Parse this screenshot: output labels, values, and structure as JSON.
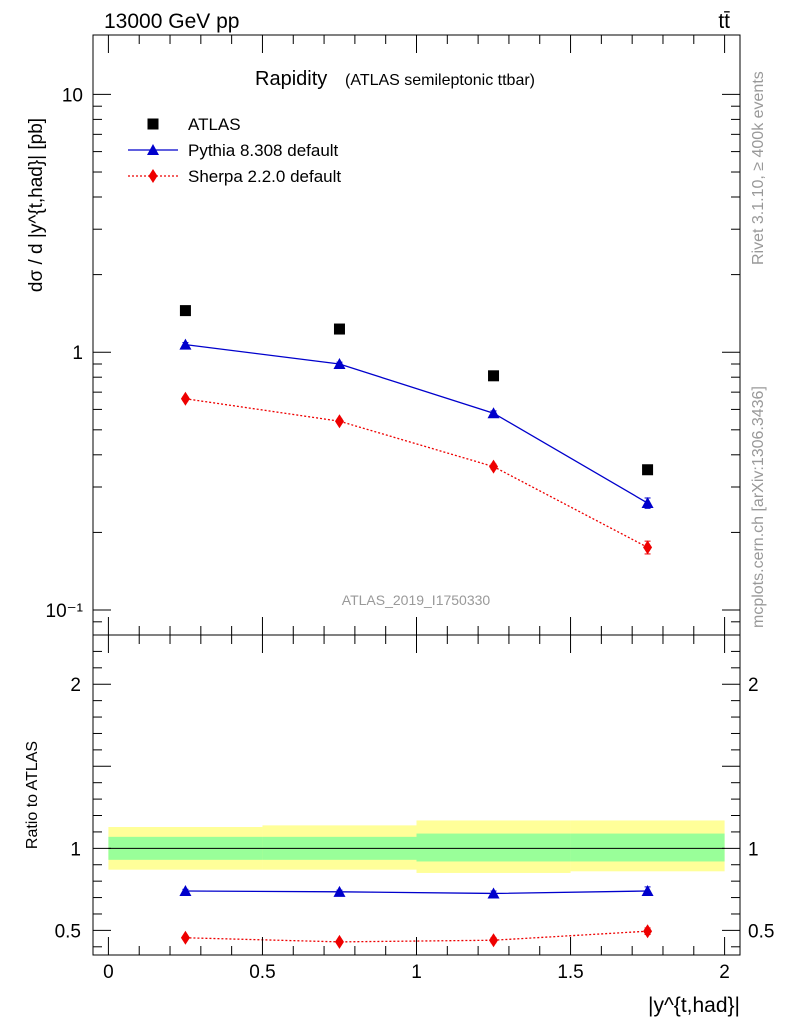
{
  "header": {
    "energy_label": "13000 GeV pp",
    "process_label": "tt̄"
  },
  "side_labels": {
    "rivet": "Rivet 3.1.10, ≥ 400k events",
    "mcplots": "mcplots.cern.ch [arXiv:1306.3436]"
  },
  "chart_data": [
    {
      "type": "scatter",
      "title": "Rapidity",
      "subtitle": "(ATLAS semileptonic ttbar)",
      "watermark": "ATLAS_2019_I1750330",
      "ylabel": "dσ / d |y^{t,had}| [pb]",
      "yscale": "log",
      "ylim": [
        0.08,
        17
      ],
      "yticks": [
        {
          "v": 0.1,
          "label": "10⁻¹"
        },
        {
          "v": 1,
          "label": "1"
        },
        {
          "v": 10,
          "label": "10"
        }
      ],
      "x": [
        0.25,
        0.75,
        1.25,
        1.75
      ],
      "xlim": [
        -0.05,
        2.05
      ],
      "legend_position": "top-left",
      "series": [
        {
          "name": "ATLAS",
          "marker": "square",
          "color": "#000000",
          "line": "none",
          "values": [
            1.45,
            1.23,
            0.81,
            0.35
          ],
          "errors": [
            0,
            0,
            0,
            0
          ]
        },
        {
          "name": "Pythia 8.308 default",
          "marker": "triangle",
          "color": "#0000cc",
          "line": "solid",
          "values": [
            1.07,
            0.9,
            0.58,
            0.26
          ],
          "errors": [
            0.02,
            0.015,
            0.012,
            0.012
          ]
        },
        {
          "name": "Sherpa 2.2.0 default",
          "marker": "diamond",
          "color": "#ee0000",
          "line": "dotted",
          "values": [
            0.66,
            0.54,
            0.36,
            0.175
          ],
          "errors": [
            0.012,
            0.01,
            0.008,
            0.01
          ]
        }
      ]
    },
    {
      "type": "scatter",
      "ylabel": "Ratio to ATLAS",
      "xlabel": "|y^{t,had}|",
      "ylim": [
        0.35,
        2.3
      ],
      "yticks": [
        {
          "v": 0.5,
          "label": "0.5"
        },
        {
          "v": 1,
          "label": "1"
        },
        {
          "v": 2,
          "label": "2"
        }
      ],
      "xticks": [
        {
          "v": 0,
          "label": "0"
        },
        {
          "v": 0.5,
          "label": "0.5"
        },
        {
          "v": 1,
          "label": "1"
        },
        {
          "v": 1.5,
          "label": "1.5"
        },
        {
          "v": 2,
          "label": "2"
        }
      ],
      "x": [
        0.25,
        0.75,
        1.25,
        1.75
      ],
      "xlim": [
        -0.05,
        2.05
      ],
      "uncertainty_bands": [
        {
          "x0": 0,
          "x1": 0.5,
          "stat": [
            0.93,
            1.07
          ],
          "total": [
            0.87,
            1.13
          ]
        },
        {
          "x0": 0.5,
          "x1": 1,
          "stat": [
            0.93,
            1.07
          ],
          "total": [
            0.87,
            1.14
          ]
        },
        {
          "x0": 1,
          "x1": 1.5,
          "stat": [
            0.92,
            1.09
          ],
          "total": [
            0.85,
            1.17
          ]
        },
        {
          "x0": 1.5,
          "x1": 2,
          "stat": [
            0.92,
            1.09
          ],
          "total": [
            0.86,
            1.17
          ]
        }
      ],
      "band_colors": {
        "stat": "#99ff99",
        "total": "#ffff99"
      },
      "series": [
        {
          "name": "Pythia 8.308 default",
          "marker": "triangle",
          "color": "#0000cc",
          "line": "solid",
          "values": [
            0.74,
            0.735,
            0.725,
            0.74
          ],
          "errors": [
            0.01,
            0.01,
            0.015,
            0.025
          ]
        },
        {
          "name": "Sherpa 2.2.0 default",
          "marker": "diamond",
          "color": "#ee0000",
          "line": "dotted",
          "values": [
            0.455,
            0.43,
            0.44,
            0.495
          ],
          "errors": [
            0.01,
            0.01,
            0.015,
            0.02
          ]
        }
      ]
    }
  ]
}
